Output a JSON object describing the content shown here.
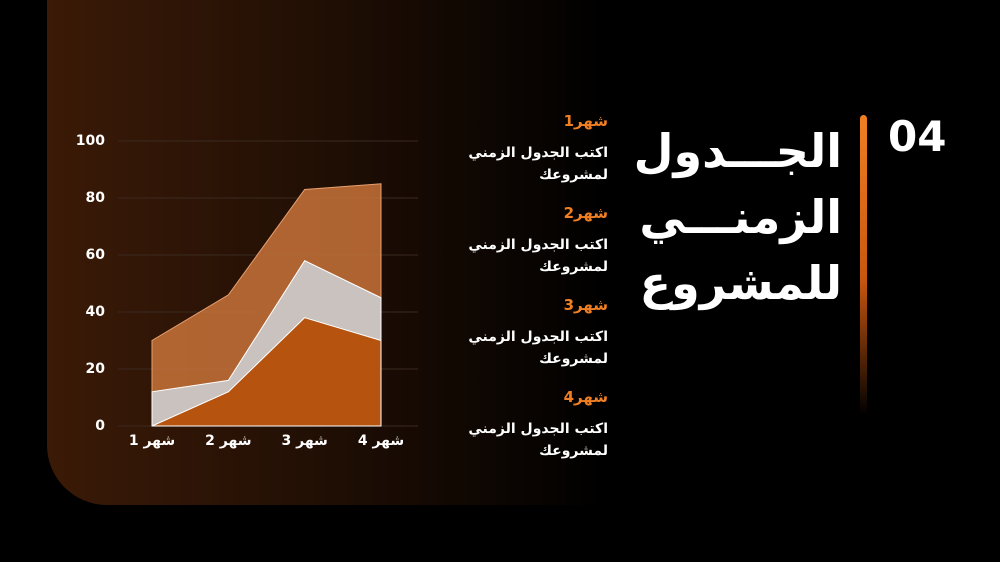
{
  "slide": {
    "number": "04",
    "title": [
      "الجـــدول",
      "الزمنـــي",
      "للمشروع"
    ],
    "items": [
      {
        "month": "شهر1",
        "text": "اكتب الجدول الزمني لمشروعك"
      },
      {
        "month": "شهر2",
        "text": "اكتب الجدول الزمني لمشروعك"
      },
      {
        "month": "شهر3",
        "text": "اكتب الجدول الزمني لمشروعك"
      },
      {
        "month": "شهر4",
        "text": "اكتب الجدول الزمني لمشروعك"
      }
    ]
  },
  "chart_data": {
    "type": "area",
    "categories": [
      "شهر 1",
      "شهر 2",
      "شهر 3",
      "شهر 4"
    ],
    "series": [
      {
        "color": "#c8733a",
        "values": [
          30,
          46,
          83,
          85
        ]
      },
      {
        "color": "#c9c2bf",
        "values": [
          12,
          16,
          58,
          45
        ]
      },
      {
        "color": "#b5530f",
        "values": [
          0,
          12,
          38,
          30
        ]
      }
    ],
    "ylim": [
      0,
      100
    ],
    "yticks": [
      0,
      20,
      40,
      60,
      80,
      100
    ],
    "grid": true
  }
}
